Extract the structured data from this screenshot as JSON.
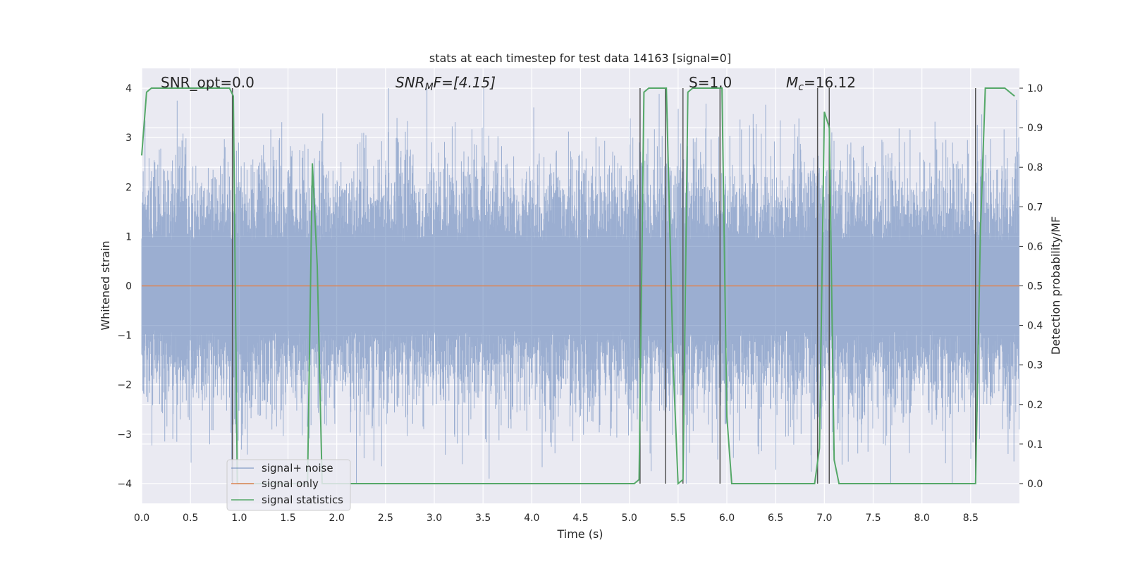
{
  "chart_data": {
    "type": "line",
    "title": "stats at each timestep for test data 14163 [signal=0]",
    "xlabel": "Time (s)",
    "ylabel": "Whitened strain",
    "y2label": "Detection probability/MF",
    "xlim": [
      0,
      9.0
    ],
    "ylim": [
      -4.4,
      4.4
    ],
    "y2lim": [
      -0.05,
      1.05
    ],
    "grid": true,
    "xticks": [
      "0.0",
      "0.5",
      "1.0",
      "1.5",
      "2.0",
      "2.5",
      "3.0",
      "3.5",
      "4.0",
      "4.5",
      "5.0",
      "5.5",
      "6.0",
      "6.5",
      "7.0",
      "7.5",
      "8.0",
      "8.5"
    ],
    "yticks": [
      "4",
      "3",
      "2",
      "1",
      "0",
      "−1",
      "−2",
      "−3",
      "−4"
    ],
    "y2ticks": [
      "1.0",
      "0.9",
      "0.8",
      "0.7",
      "0.6",
      "0.5",
      "0.4",
      "0.3",
      "0.2",
      "0.1",
      "0.0"
    ],
    "annotations": {
      "snr_opt": "SNR_opt=0.0",
      "snr_mf_main": "SNR",
      "snr_mf_sub": "M",
      "snr_mf_rest": "F=[4.15]",
      "s": "S=1.0",
      "mc_main": "M",
      "mc_sub": "c",
      "mc_rest": "=16.12"
    },
    "legend": {
      "placement": "lower-left",
      "entries": [
        "signal+ noise",
        "signal only",
        "signal statistics"
      ]
    },
    "colors": {
      "noise": "#4c72b0",
      "signal": "#dd8452",
      "stats": "#55a868",
      "vlines": "#555555",
      "background": "#eaeaf2"
    },
    "series": [
      {
        "name": "signal+ noise",
        "axis": "left",
        "style": "dense noise, amplitude roughly ±2 with peaks to ±4"
      },
      {
        "name": "signal only",
        "axis": "left",
        "x": [
          0.0,
          9.0
        ],
        "y": [
          0.0,
          0.0
        ]
      },
      {
        "name": "signal statistics",
        "axis": "right",
        "x": [
          0.0,
          0.05,
          0.1,
          0.9,
          0.94,
          0.98,
          1.7,
          1.75,
          1.8,
          1.85,
          5.05,
          5.1,
          5.15,
          5.2,
          5.25,
          5.3,
          5.38,
          5.45,
          5.5,
          5.55,
          5.6,
          5.65,
          5.95,
          6.0,
          6.05,
          6.9,
          6.95,
          7.0,
          7.05,
          7.1,
          7.15,
          8.0,
          8.55,
          8.6,
          8.65,
          8.85,
          8.95
        ],
        "y": [
          0.83,
          0.99,
          1.0,
          1.0,
          0.98,
          0.0,
          0.0,
          0.81,
          0.55,
          0.0,
          0.0,
          0.01,
          0.99,
          1.0,
          1.0,
          1.0,
          1.0,
          0.3,
          0.0,
          0.01,
          0.99,
          1.0,
          1.0,
          0.17,
          0.0,
          0.0,
          0.09,
          0.94,
          0.9,
          0.06,
          0.0,
          0.0,
          0.0,
          0.64,
          1.0,
          1.0,
          0.98
        ]
      }
    ],
    "vlines_x": [
      0.93,
      5.11,
      5.37,
      5.55,
      5.93,
      6.93,
      7.05,
      8.55
    ]
  }
}
